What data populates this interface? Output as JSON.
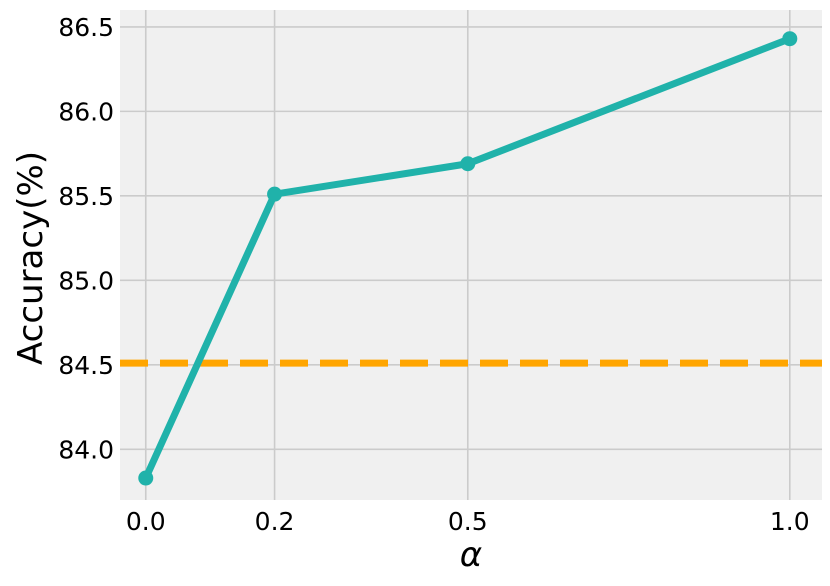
{
  "chart_data": {
    "type": "line",
    "title": "",
    "xlabel": "α",
    "ylabel": "Accuracy(%)",
    "x": [
      0.0,
      0.2,
      0.5,
      1.0
    ],
    "x_tick_labels": [
      "0.0",
      "0.2",
      "0.5",
      "1.0"
    ],
    "series": [
      {
        "values": [
          83.83,
          85.51,
          85.69,
          86.43
        ],
        "color": "#20b2aa",
        "style": "solid",
        "marker": "circle"
      }
    ],
    "reference_lines": [
      {
        "y": 84.51,
        "color": "#ffa500",
        "style": "dashed"
      }
    ],
    "y_ticks": [
      84.0,
      84.5,
      85.0,
      85.5,
      86.0,
      86.5
    ],
    "y_tick_labels": [
      "84.0",
      "84.5",
      "85.0",
      "85.5",
      "86.0",
      "86.5"
    ],
    "xlim": [
      -0.04,
      1.05
    ],
    "ylim": [
      83.7,
      86.6
    ],
    "grid": true,
    "background": "#f0f0f0"
  }
}
